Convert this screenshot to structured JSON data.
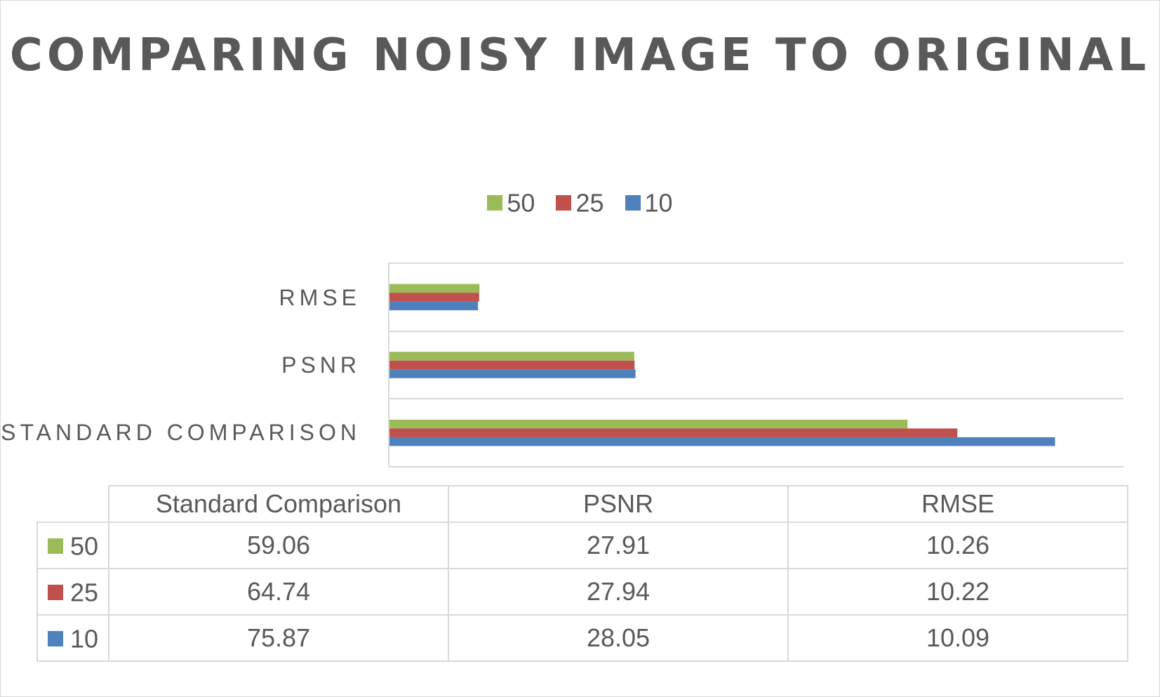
{
  "chart_data": {
    "type": "bar",
    "orientation": "horizontal",
    "title": "COMPARING NOISY IMAGE TO ORIGINAL",
    "categories": [
      "Standard Comparison",
      "PSNR",
      "RMSE"
    ],
    "category_axis_labels": [
      "STANDARD COMPARISON",
      "PSNR",
      "RMSE"
    ],
    "series": [
      {
        "name": "50",
        "color": "#9bbb59",
        "values": [
          59.06,
          27.91,
          10.26
        ]
      },
      {
        "name": "25",
        "color": "#c0504d",
        "values": [
          64.74,
          27.94,
          10.22
        ]
      },
      {
        "name": "10",
        "color": "#4f81bd",
        "values": [
          75.87,
          28.05,
          10.09
        ]
      }
    ],
    "xlim": [
      0,
      80
    ],
    "legend_position": "top",
    "grid": "horizontal category separators",
    "data_table": true
  },
  "table_headers": [
    "Standard Comparison",
    "PSNR",
    "RMSE"
  ],
  "table_rows": [
    {
      "series": "50",
      "color": "#9bbb59",
      "cells": [
        "59.06",
        "27.91",
        "10.26"
      ]
    },
    {
      "series": "25",
      "color": "#c0504d",
      "cells": [
        "64.74",
        "27.94",
        "10.22"
      ]
    },
    {
      "series": "10",
      "color": "#4f81bd",
      "cells": [
        "75.87",
        "28.05",
        "10.09"
      ]
    }
  ]
}
